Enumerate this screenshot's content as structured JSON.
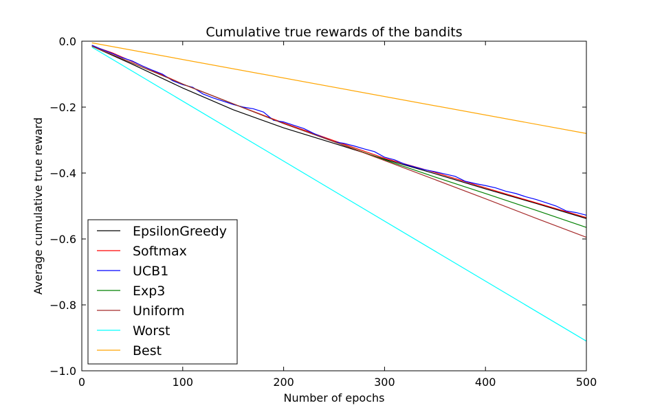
{
  "chart_data": {
    "type": "line",
    "title": "Cumulative true rewards of the bandits",
    "xlabel": "Number of epochs",
    "ylabel": "Average cumulative true reward",
    "xlim": [
      0,
      500
    ],
    "ylim": [
      -1.0,
      0.0
    ],
    "xticks": [
      0,
      100,
      200,
      300,
      400,
      500
    ],
    "xtick_labels": [
      "0",
      "100",
      "200",
      "300",
      "400",
      "500"
    ],
    "yticks": [
      0.0,
      -0.2,
      -0.4,
      -0.6,
      -0.8,
      -1.0
    ],
    "ytick_labels": [
      "0.0",
      "−0.2",
      "−0.4",
      "−0.6",
      "−0.8",
      "−1.0"
    ],
    "grid": false,
    "legend_position": "bottom-left",
    "series": [
      {
        "name": "EpsilonGreedy",
        "color": "#000000",
        "points": [
          [
            10,
            -0.015
          ],
          [
            50,
            -0.07
          ],
          [
            100,
            -0.142
          ],
          [
            150,
            -0.208
          ],
          [
            200,
            -0.263
          ],
          [
            250,
            -0.31
          ],
          [
            300,
            -0.358
          ],
          [
            350,
            -0.402
          ],
          [
            400,
            -0.448
          ],
          [
            450,
            -0.492
          ],
          [
            500,
            -0.538
          ]
        ]
      },
      {
        "name": "Softmax",
        "color": "#ff0000",
        "points": [
          [
            10,
            -0.014
          ],
          [
            30,
            -0.035
          ],
          [
            60,
            -0.075
          ],
          [
            100,
            -0.13
          ],
          [
            150,
            -0.19
          ],
          [
            200,
            -0.248
          ],
          [
            250,
            -0.302
          ],
          [
            300,
            -0.355
          ],
          [
            350,
            -0.398
          ],
          [
            400,
            -0.445
          ],
          [
            450,
            -0.49
          ],
          [
            500,
            -0.535
          ]
        ]
      },
      {
        "name": "UCB1",
        "color": "#0000ff",
        "points": [
          [
            10,
            -0.012
          ],
          [
            20,
            -0.025
          ],
          [
            30,
            -0.037
          ],
          [
            40,
            -0.05
          ],
          [
            50,
            -0.06
          ],
          [
            60,
            -0.075
          ],
          [
            70,
            -0.088
          ],
          [
            80,
            -0.1
          ],
          [
            90,
            -0.12
          ],
          [
            100,
            -0.132
          ],
          [
            110,
            -0.14
          ],
          [
            120,
            -0.16
          ],
          [
            130,
            -0.172
          ],
          [
            140,
            -0.182
          ],
          [
            150,
            -0.192
          ],
          [
            160,
            -0.2
          ],
          [
            170,
            -0.205
          ],
          [
            180,
            -0.215
          ],
          [
            190,
            -0.24
          ],
          [
            200,
            -0.245
          ],
          [
            210,
            -0.255
          ],
          [
            220,
            -0.265
          ],
          [
            230,
            -0.28
          ],
          [
            240,
            -0.293
          ],
          [
            250,
            -0.305
          ],
          [
            260,
            -0.31
          ],
          [
            270,
            -0.318
          ],
          [
            280,
            -0.327
          ],
          [
            290,
            -0.335
          ],
          [
            300,
            -0.352
          ],
          [
            310,
            -0.36
          ],
          [
            320,
            -0.373
          ],
          [
            330,
            -0.382
          ],
          [
            340,
            -0.39
          ],
          [
            350,
            -0.396
          ],
          [
            360,
            -0.403
          ],
          [
            370,
            -0.41
          ],
          [
            380,
            -0.425
          ],
          [
            390,
            -0.432
          ],
          [
            400,
            -0.438
          ],
          [
            410,
            -0.445
          ],
          [
            420,
            -0.455
          ],
          [
            430,
            -0.462
          ],
          [
            440,
            -0.472
          ],
          [
            450,
            -0.48
          ],
          [
            460,
            -0.49
          ],
          [
            470,
            -0.5
          ],
          [
            480,
            -0.515
          ],
          [
            490,
            -0.52
          ],
          [
            500,
            -0.528
          ]
        ]
      },
      {
        "name": "Exp3",
        "color": "#008000",
        "points": [
          [
            10,
            -0.015
          ],
          [
            100,
            -0.13
          ],
          [
            200,
            -0.25
          ],
          [
            250,
            -0.305
          ],
          [
            300,
            -0.36
          ],
          [
            350,
            -0.412
          ],
          [
            400,
            -0.462
          ],
          [
            450,
            -0.513
          ],
          [
            500,
            -0.565
          ]
        ]
      },
      {
        "name": "Uniform",
        "color": "#a52a2a",
        "points": [
          [
            10,
            -0.015
          ],
          [
            100,
            -0.13
          ],
          [
            200,
            -0.25
          ],
          [
            250,
            -0.305
          ],
          [
            300,
            -0.362
          ],
          [
            350,
            -0.42
          ],
          [
            400,
            -0.478
          ],
          [
            450,
            -0.537
          ],
          [
            500,
            -0.595
          ]
        ]
      },
      {
        "name": "Worst",
        "color": "#00ffff",
        "points": [
          [
            10,
            -0.018
          ],
          [
            500,
            -0.91
          ]
        ]
      },
      {
        "name": "Best",
        "color": "#ffa500",
        "points": [
          [
            10,
            -0.005
          ],
          [
            500,
            -0.28
          ]
        ]
      }
    ]
  }
}
